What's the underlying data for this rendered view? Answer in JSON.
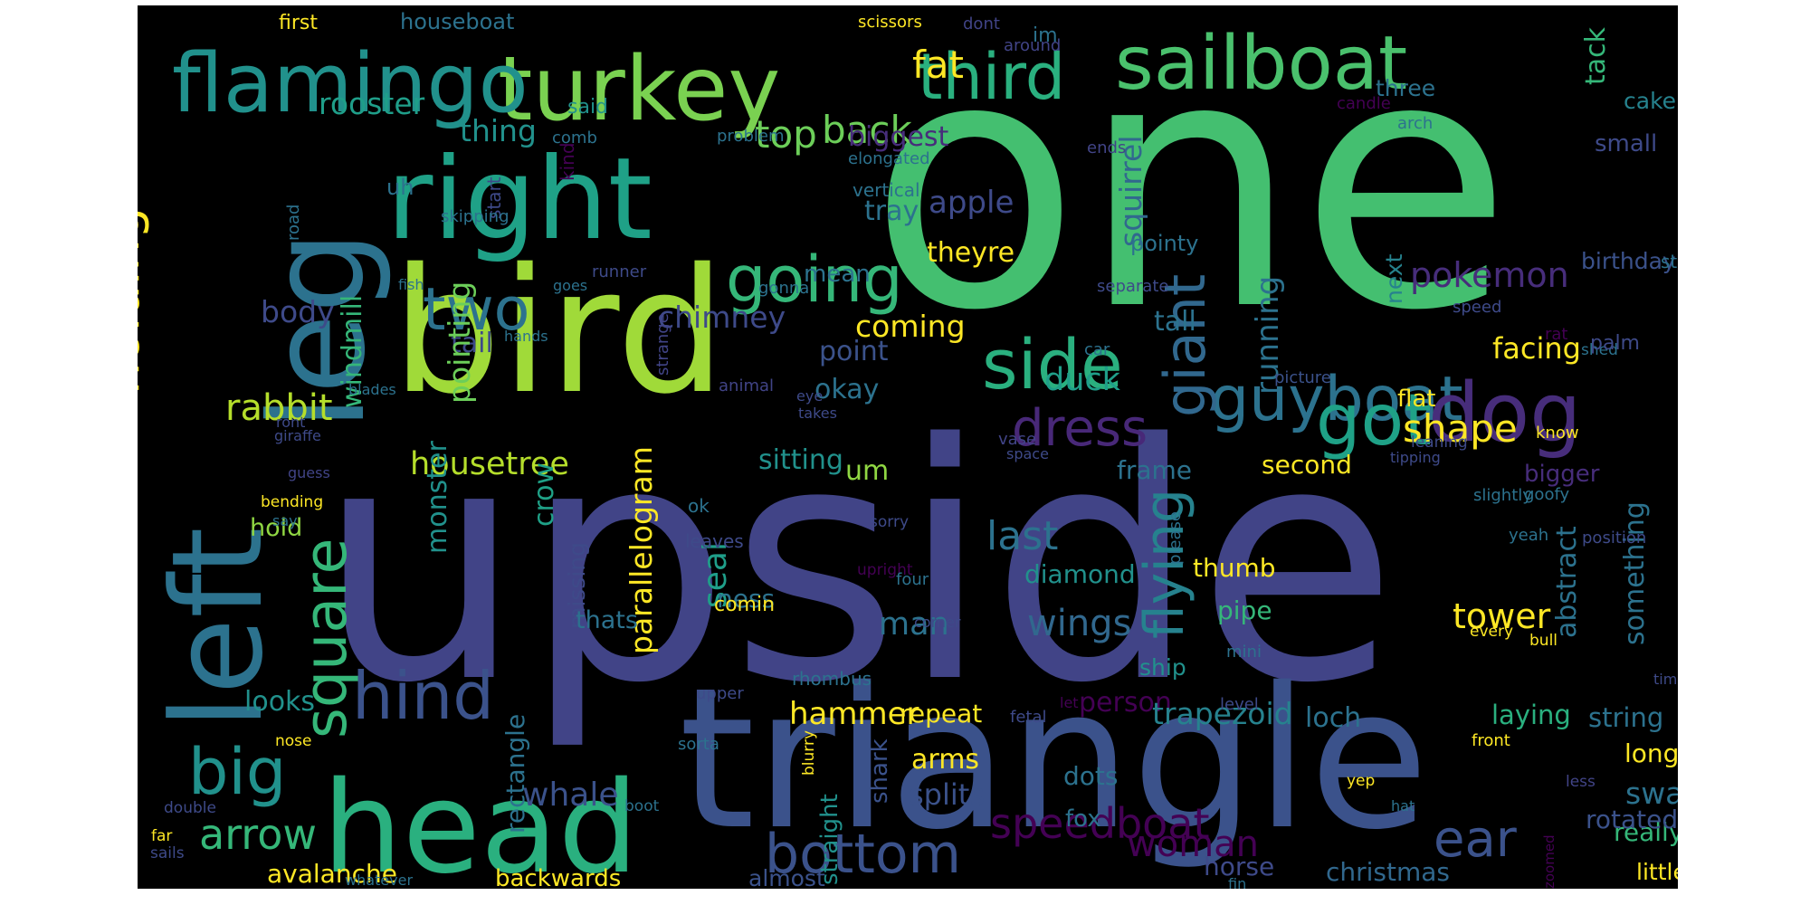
{
  "words": [
    {
      "text": "one",
      "color": "#44BF70"
    },
    {
      "text": "upside",
      "color": "#414487"
    },
    {
      "text": "triangle",
      "color": "#3B528B"
    },
    {
      "text": "bird",
      "color": "#A0DA39"
    },
    {
      "text": "head",
      "color": "#2AB07F"
    },
    {
      "text": "right",
      "color": "#1FA187"
    },
    {
      "text": "leg",
      "color": "#2C728E"
    },
    {
      "text": "left",
      "color": "#2C728E"
    },
    {
      "text": "turkey",
      "color": "#7AD151"
    },
    {
      "text": "flamingo",
      "color": "#21918C"
    },
    {
      "text": "sailboat",
      "color": "#4AC16D"
    },
    {
      "text": "third",
      "color": "#2AB07F"
    },
    {
      "text": "guyboat",
      "color": "#2C728E"
    },
    {
      "text": "dog",
      "color": "#472D7B"
    },
    {
      "text": "got",
      "color": "#1FA187"
    },
    {
      "text": "side",
      "color": "#2AB07F"
    },
    {
      "text": "going",
      "color": "#35B779"
    },
    {
      "text": "two",
      "color": "#2C728E"
    },
    {
      "text": "hind",
      "color": "#3B528B"
    },
    {
      "text": "big",
      "color": "#21918C"
    },
    {
      "text": "square",
      "color": "#35B779"
    },
    {
      "text": "holding",
      "color": "#FDE725"
    },
    {
      "text": "dress",
      "color": "#482878"
    },
    {
      "text": "bottom",
      "color": "#3B528B"
    },
    {
      "text": "ear",
      "color": "#3B528B"
    },
    {
      "text": "giant",
      "color": "#31688E"
    },
    {
      "text": "flying",
      "color": "#26828E"
    },
    {
      "text": "speedboat",
      "color": "#440154"
    },
    {
      "text": "arrow",
      "color": "#35B779"
    },
    {
      "text": "fat",
      "color": "#FDE725"
    },
    {
      "text": "top",
      "color": "#6CCE59"
    },
    {
      "text": "back",
      "color": "#6CCE59"
    },
    {
      "text": "rooster",
      "color": "#1F9E89"
    },
    {
      "text": "thing",
      "color": "#21918C"
    },
    {
      "text": "biggest",
      "color": "#472D7B"
    },
    {
      "text": "apple",
      "color": "#3E4A89"
    },
    {
      "text": "tray",
      "color": "#2C728E"
    },
    {
      "text": "theyre",
      "color": "#FDE725"
    },
    {
      "text": "squirrel",
      "color": "#31688E"
    },
    {
      "text": "running",
      "color": "#2C728E"
    },
    {
      "text": "pokemon",
      "color": "#472D7B"
    },
    {
      "text": "shape",
      "color": "#FDE725"
    },
    {
      "text": "duck",
      "color": "#1F9E89"
    },
    {
      "text": "facing",
      "color": "#FDE725"
    },
    {
      "text": "rabbit",
      "color": "#B5DE2B"
    },
    {
      "text": "housetree",
      "color": "#B5DE2B"
    },
    {
      "text": "sitting",
      "color": "#21918C"
    },
    {
      "text": "um",
      "color": "#90D743"
    },
    {
      "text": "body",
      "color": "#3E4A89"
    },
    {
      "text": "tail",
      "color": "#3E4A89"
    },
    {
      "text": "chimney",
      "color": "#3E4A89"
    },
    {
      "text": "coming",
      "color": "#FDE725"
    },
    {
      "text": "point",
      "color": "#3B528B"
    },
    {
      "text": "okay",
      "color": "#2C728E"
    },
    {
      "text": "pointing",
      "color": "#6CCE59"
    },
    {
      "text": "windmill",
      "color": "#35B779"
    },
    {
      "text": "monster",
      "color": "#21918C"
    },
    {
      "text": "crow",
      "color": "#1FA187"
    },
    {
      "text": "parallelogram",
      "color": "#FDE725"
    },
    {
      "text": "seal",
      "color": "#1F9E89"
    },
    {
      "text": "last",
      "color": "#2C728E"
    },
    {
      "text": "diamond",
      "color": "#21918C"
    },
    {
      "text": "wings",
      "color": "#31688E"
    },
    {
      "text": "man",
      "color": "#2C728E"
    },
    {
      "text": "woman",
      "color": "#440154"
    },
    {
      "text": "tower",
      "color": "#FDE725"
    },
    {
      "text": "thumb",
      "color": "#FDE725"
    },
    {
      "text": "pipe",
      "color": "#35B779"
    },
    {
      "text": "abstract",
      "color": "#2C728E"
    },
    {
      "text": "something",
      "color": "#2C728E"
    },
    {
      "text": "hammer",
      "color": "#FDE725"
    },
    {
      "text": "repeat",
      "color": "#FDE725"
    },
    {
      "text": "person",
      "color": "#440154"
    },
    {
      "text": "trapezoid",
      "color": "#26828E"
    },
    {
      "text": "loch",
      "color": "#2C728E"
    },
    {
      "text": "laying",
      "color": "#2AB07F"
    },
    {
      "text": "string",
      "color": "#2C728E"
    },
    {
      "text": "long",
      "color": "#FDE725"
    },
    {
      "text": "swan",
      "color": "#2C728E"
    },
    {
      "text": "really",
      "color": "#35B779"
    },
    {
      "text": "whale",
      "color": "#3B528B"
    },
    {
      "text": "splits",
      "color": "#3B528B"
    },
    {
      "text": "arms",
      "color": "#FDE725"
    },
    {
      "text": "dots",
      "color": "#2C728E"
    },
    {
      "text": "rectangle",
      "color": "#2C728E"
    },
    {
      "text": "looks",
      "color": "#21918C"
    },
    {
      "text": "avalanche",
      "color": "#FDE725"
    },
    {
      "text": "backwards",
      "color": "#FDE725"
    },
    {
      "text": "almost",
      "color": "#3B528B"
    },
    {
      "text": "horse",
      "color": "#3E4A89"
    },
    {
      "text": "christmas",
      "color": "#31688E"
    },
    {
      "text": "little",
      "color": "#FDE725"
    },
    {
      "text": "straight",
      "color": "#21918C"
    },
    {
      "text": "shark",
      "color": "#3B528B"
    },
    {
      "text": "fox",
      "color": "#2C728E"
    },
    {
      "text": "rotated",
      "color": "#3B528B"
    },
    {
      "text": "missing",
      "color": "#3E4A89"
    },
    {
      "text": "thats",
      "color": "#2C728E"
    },
    {
      "text": "hold",
      "color": "#90D743"
    },
    {
      "text": "ness",
      "color": "#2C728E"
    },
    {
      "text": "comin",
      "color": "#FDE725"
    },
    {
      "text": "ship",
      "color": "#21918C"
    },
    {
      "text": "frame",
      "color": "#2C728E"
    },
    {
      "text": "second",
      "color": "#FDE725"
    },
    {
      "text": "bigger",
      "color": "#472D7B"
    },
    {
      "text": "flat",
      "color": "#FDE725"
    },
    {
      "text": "tall",
      "color": "#2C728E"
    },
    {
      "text": "three",
      "color": "#2C728E"
    },
    {
      "text": "small",
      "color": "#3E4A89"
    },
    {
      "text": "tack",
      "color": "#35B779"
    },
    {
      "text": "cake",
      "color": "#26828E"
    },
    {
      "text": "next",
      "color": "#26828E"
    },
    {
      "text": "birthday",
      "color": "#3B528B"
    },
    {
      "text": "pointy",
      "color": "#2C728E"
    },
    {
      "text": "mean",
      "color": "#2C728E"
    },
    {
      "text": "uh",
      "color": "#2C728E"
    },
    {
      "text": "said",
      "color": "#21918C"
    },
    {
      "text": "im",
      "color": "#2C728E"
    },
    {
      "text": "first",
      "color": "#FDE725"
    },
    {
      "text": "houseboat",
      "color": "#2C728E"
    },
    {
      "text": "scissors",
      "color": "#FDE725"
    },
    {
      "text": "dont",
      "color": "#414487"
    },
    {
      "text": "around",
      "color": "#414487"
    },
    {
      "text": "candle",
      "color": "#440154"
    },
    {
      "text": "arch",
      "color": "#2C728E"
    },
    {
      "text": "comb",
      "color": "#2C728E"
    },
    {
      "text": "problem",
      "color": "#2C728E"
    },
    {
      "text": "ends",
      "color": "#414487"
    },
    {
      "text": "elongated",
      "color": "#2C728E"
    },
    {
      "text": "start",
      "color": "#3E4A89"
    },
    {
      "text": "kind",
      "color": "#440154"
    },
    {
      "text": "road",
      "color": "#2C728E"
    },
    {
      "text": "skipping",
      "color": "#2C728E"
    },
    {
      "text": "vertical",
      "color": "#2C728E"
    },
    {
      "text": "runner",
      "color": "#3E4A89"
    },
    {
      "text": "fish",
      "color": "#2C728E"
    },
    {
      "text": "goes",
      "color": "#2C728E"
    },
    {
      "text": "gonna",
      "color": "#2C728E"
    },
    {
      "text": "separate",
      "color": "#3E4A89"
    },
    {
      "text": "speed",
      "color": "#3E4A89"
    },
    {
      "text": "starting",
      "color": "#2C728E"
    },
    {
      "text": "shed",
      "color": "#2C728E"
    },
    {
      "text": "palm",
      "color": "#3E4A89"
    },
    {
      "text": "rat",
      "color": "#440154"
    },
    {
      "text": "picture",
      "color": "#3B528B"
    },
    {
      "text": "car",
      "color": "#2C728E"
    },
    {
      "text": "eye",
      "color": "#3E4A89"
    },
    {
      "text": "takes",
      "color": "#3E4A89"
    },
    {
      "text": "animal",
      "color": "#414487"
    },
    {
      "text": "strange",
      "color": "#414487"
    },
    {
      "text": "hands",
      "color": "#2C728E"
    },
    {
      "text": "blades",
      "color": "#2C728E"
    },
    {
      "text": "ront",
      "color": "#3E4A89"
    },
    {
      "text": "giraffe",
      "color": "#3E4A89"
    },
    {
      "text": "guess",
      "color": "#414487"
    },
    {
      "text": "vase",
      "color": "#414487"
    },
    {
      "text": "space",
      "color": "#3E4A89"
    },
    {
      "text": "know",
      "color": "#FDE725"
    },
    {
      "text": "leaning",
      "color": "#3E4A89"
    },
    {
      "text": "tipping",
      "color": "#3E4A89"
    },
    {
      "text": "bending",
      "color": "#FDE725"
    },
    {
      "text": "say",
      "color": "#2C728E"
    },
    {
      "text": "ok",
      "color": "#2C728E"
    },
    {
      "text": "leaves",
      "color": "#3E4A89"
    },
    {
      "text": "sorry",
      "color": "#3E4A89"
    },
    {
      "text": "please",
      "color": "#2C728E"
    },
    {
      "text": "slightly",
      "color": "#2C728E"
    },
    {
      "text": "goofy",
      "color": "#2C728E"
    },
    {
      "text": "position",
      "color": "#3E4A89"
    },
    {
      "text": "yeah",
      "color": "#2C728E"
    },
    {
      "text": "every",
      "color": "#FDE725"
    },
    {
      "text": "bull",
      "color": "#FDE725"
    },
    {
      "text": "upright",
      "color": "#440154"
    },
    {
      "text": "four",
      "color": "#2C728E"
    },
    {
      "text": "corner",
      "color": "#3E4A89"
    },
    {
      "text": "rhombus",
      "color": "#2C728E"
    },
    {
      "text": "mini",
      "color": "#2C728E"
    },
    {
      "text": "time",
      "color": "#3E4A89"
    },
    {
      "text": "upper",
      "color": "#3E4A89"
    },
    {
      "text": "let",
      "color": "#440154"
    },
    {
      "text": "fetal",
      "color": "#3E4A89"
    },
    {
      "text": "level",
      "color": "#3E4A89"
    },
    {
      "text": "front",
      "color": "#FDE725"
    },
    {
      "text": "nose",
      "color": "#FDE725"
    },
    {
      "text": "sorta",
      "color": "#2C728E"
    },
    {
      "text": "blurry",
      "color": "#FDE725"
    },
    {
      "text": "yep",
      "color": "#FDE725"
    },
    {
      "text": "less",
      "color": "#414487"
    },
    {
      "text": "hat",
      "color": "#2C728E"
    },
    {
      "text": "double",
      "color": "#3E4A89"
    },
    {
      "text": "boot",
      "color": "#2C728E"
    },
    {
      "text": "far",
      "color": "#FDE725"
    },
    {
      "text": "sails",
      "color": "#3E4A89"
    },
    {
      "text": "whatever",
      "color": "#2C728E"
    },
    {
      "text": "fin",
      "color": "#2C728E"
    },
    {
      "text": "zoomed",
      "color": "#440154"
    },
    {
      "text": "slipping",
      "color": "#3E4A89"
    },
    {
      "text": "ass",
      "color": "#3E4A89"
    }
  ]
}
